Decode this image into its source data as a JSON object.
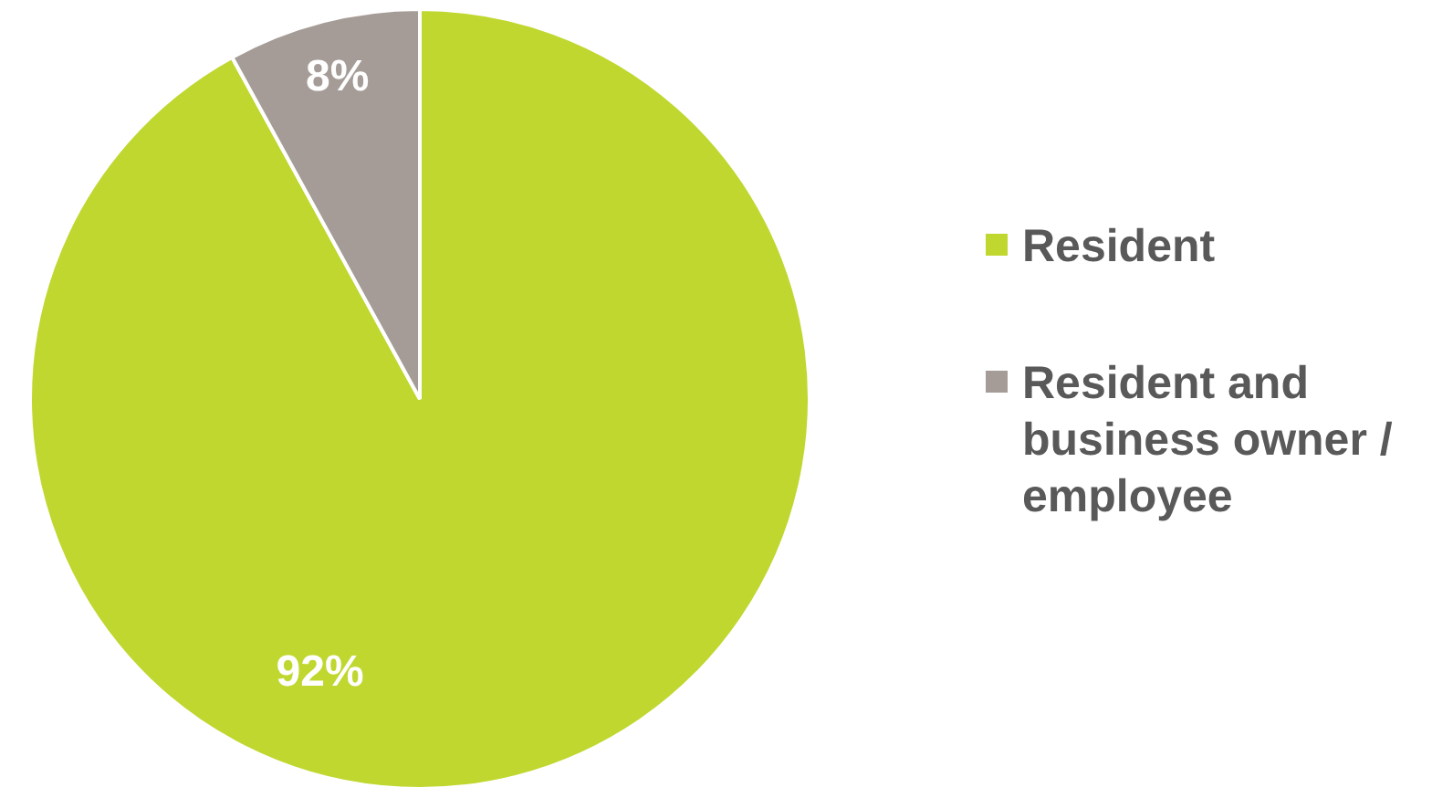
{
  "chart_data": {
    "type": "pie",
    "categories": [
      "Resident",
      "Resident and business owner / employee"
    ],
    "values": [
      92,
      8
    ],
    "colors": [
      "#c0d72f",
      "#a59c97"
    ],
    "value_labels": [
      "92%",
      "8%"
    ],
    "legend": "right"
  }
}
